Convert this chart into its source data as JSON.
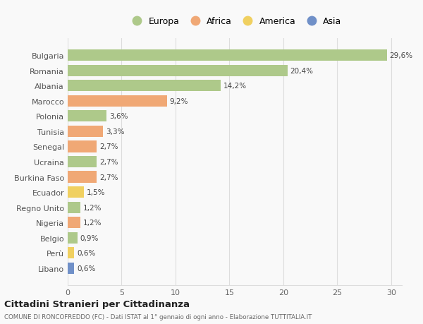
{
  "countries": [
    "Bulgaria",
    "Romania",
    "Albania",
    "Marocco",
    "Polonia",
    "Tunisia",
    "Senegal",
    "Ucraina",
    "Burkina Faso",
    "Ecuador",
    "Regno Unito",
    "Nigeria",
    "Belgio",
    "Perù",
    "Libano"
  ],
  "values": [
    29.6,
    20.4,
    14.2,
    9.2,
    3.6,
    3.3,
    2.7,
    2.7,
    2.7,
    1.5,
    1.2,
    1.2,
    0.9,
    0.6,
    0.6
  ],
  "labels": [
    "29,6%",
    "20,4%",
    "14,2%",
    "9,2%",
    "3,6%",
    "3,3%",
    "2,7%",
    "2,7%",
    "2,7%",
    "1,5%",
    "1,2%",
    "1,2%",
    "0,9%",
    "0,6%",
    "0,6%"
  ],
  "continent": [
    "Europa",
    "Europa",
    "Europa",
    "Africa",
    "Europa",
    "Africa",
    "Africa",
    "Europa",
    "Africa",
    "America",
    "Europa",
    "Africa",
    "Europa",
    "America",
    "Asia"
  ],
  "colors": {
    "Europa": "#aec98a",
    "Africa": "#f0a875",
    "America": "#f0d060",
    "Asia": "#7090c8"
  },
  "legend_order": [
    "Europa",
    "Africa",
    "America",
    "Asia"
  ],
  "xlim": [
    0,
    31
  ],
  "xticks": [
    0,
    5,
    10,
    15,
    20,
    25,
    30
  ],
  "title": "Cittadini Stranieri per Cittadinanza",
  "subtitle": "COMUNE DI RONCOFREDDO (FC) - Dati ISTAT al 1° gennaio di ogni anno - Elaborazione TUTTITALIA.IT",
  "bg_color": "#f9f9f9",
  "grid_color": "#dddddd"
}
